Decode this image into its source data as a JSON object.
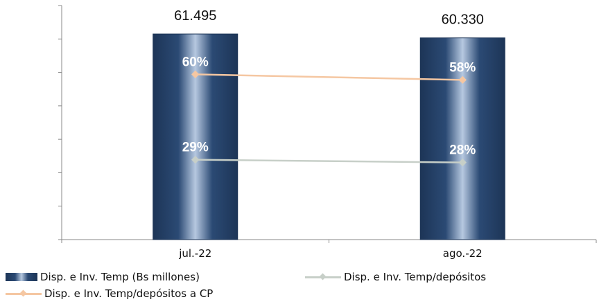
{
  "chart_data": {
    "type": "bar",
    "categories": [
      "jul.-22",
      "ago.-22"
    ],
    "series": [
      {
        "name": "Disp. e Inv. Temp (Bs millones)",
        "type": "bar",
        "values": [
          61495,
          60330
        ],
        "labels": [
          "61.495",
          "60.330"
        ],
        "color": "#1d3557"
      },
      {
        "name": "Disp. e Inv. Temp/depósitos a CP",
        "type": "line",
        "values": [
          60,
          58
        ],
        "labels": [
          "60%",
          "58%"
        ],
        "color": "#f5c7a2"
      },
      {
        "name": "Disp. e Inv. Temp/depósitos",
        "type": "line",
        "values": [
          29,
          28
        ],
        "labels": [
          "29%",
          "28%"
        ],
        "color": "#c7cfc8"
      }
    ],
    "axes": {
      "bar_ylim": [
        0,
        70000
      ],
      "line_ylim": [
        0,
        85
      ]
    },
    "grid": false,
    "legend_position": "bottom"
  }
}
